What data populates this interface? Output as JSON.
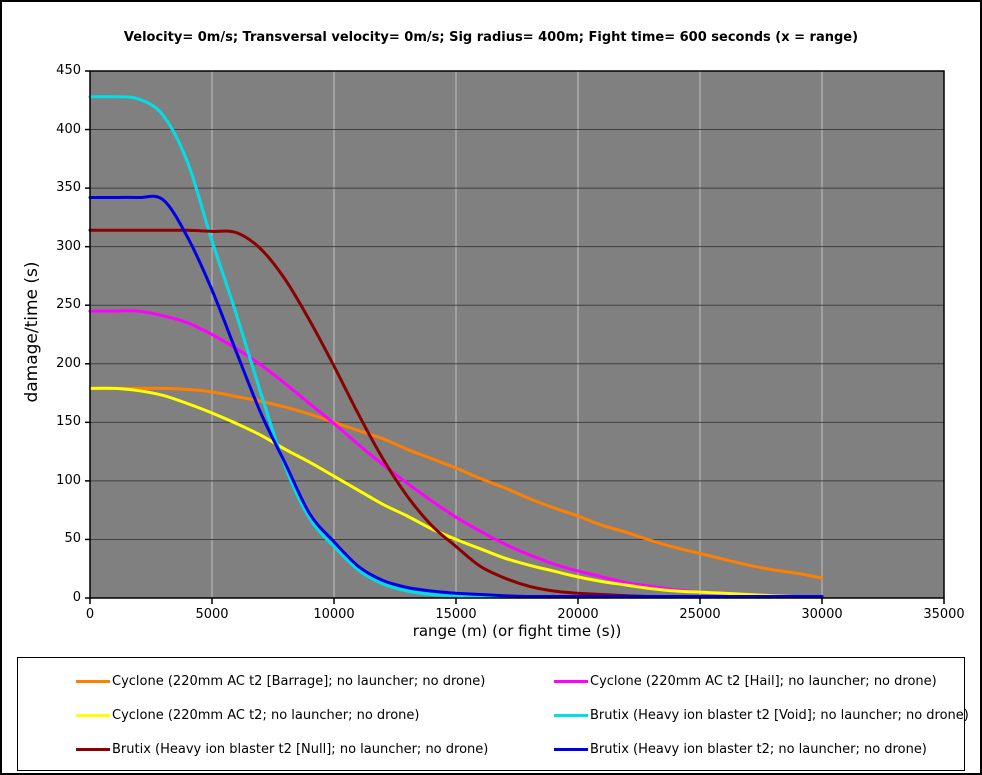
{
  "chart": {
    "title": "Velocity= 0m/s; Transversal velocity= 0m/s; Sig radius= 400m; Fight time= 600 seconds (x = range)",
    "y_axis": {
      "title": "damage/time (s)",
      "min": 0,
      "max": 450,
      "step": 50
    },
    "x_axis": {
      "title": "range (m) (or fight time (s))",
      "min": 0,
      "max": 35000,
      "step": 5000
    },
    "colors": {
      "plot_background": "#808080",
      "horizontal_grid": "#404040",
      "vertical_grid": "#c0c0c0",
      "axis": "#000000",
      "text": "#000000"
    }
  },
  "chart_data": {
    "type": "line",
    "title": "Velocity= 0m/s; Transversal velocity= 0m/s; Sig radius= 400m; Fight time= 600 seconds (x = range)",
    "xlabel": "range (m) (or fight time (s))",
    "ylabel": "damage/time (s)",
    "xlim": [
      0,
      35000
    ],
    "ylim": [
      0,
      450
    ],
    "x_ticks": [
      0,
      5000,
      10000,
      15000,
      20000,
      25000,
      30000,
      35000
    ],
    "y_ticks": [
      0,
      50,
      100,
      150,
      200,
      250,
      300,
      350,
      400,
      450
    ],
    "grid": {
      "horizontal": true,
      "vertical": true
    },
    "legend_position": "bottom",
    "x": [
      0,
      1000,
      2000,
      3000,
      4000,
      5000,
      6000,
      7000,
      8000,
      9000,
      10000,
      11000,
      12000,
      13000,
      14000,
      15000,
      16000,
      17000,
      18000,
      19000,
      20000,
      21000,
      22000,
      23000,
      24000,
      25000,
      26000,
      27000,
      28000,
      29000,
      30000
    ],
    "series": [
      {
        "name": "Cyclone (220mm AC t2 [Barrage]; no launcher; no drone)",
        "color": "#ff7f00",
        "values": [
          179,
          179,
          179,
          179,
          178,
          176,
          172,
          168,
          163,
          157,
          150,
          143,
          136,
          127,
          119,
          111,
          102,
          94,
          85,
          77,
          70,
          62,
          56,
          49,
          43,
          38,
          33,
          28,
          24,
          21,
          17
        ]
      },
      {
        "name": "Cyclone (220mm AC t2 [Hail]; no launcher; no drone)",
        "color": "#ff00ff",
        "values": [
          245,
          245,
          245,
          241,
          235,
          225,
          213,
          199,
          183,
          166,
          149,
          131,
          114,
          98,
          83,
          69,
          57,
          46,
          37,
          29,
          23,
          18,
          13,
          10,
          7,
          5,
          4,
          3,
          2,
          1,
          1
        ]
      },
      {
        "name": "Cyclone (220mm AC t2; no launcher; no drone)",
        "color": "#ffff00",
        "values": [
          179,
          179,
          177,
          173,
          166,
          158,
          149,
          139,
          127,
          116,
          104,
          92,
          80,
          70,
          59,
          50,
          42,
          34,
          28,
          23,
          18,
          14,
          11,
          8,
          6,
          5,
          4,
          3,
          2,
          1,
          1
        ]
      },
      {
        "name": "Brutix (Heavy ion blaster t2 [Void]; no launcher; no drone)",
        "color": "#00dfe8",
        "values": [
          428,
          428,
          426,
          412,
          372,
          305,
          242,
          175,
          112,
          68,
          44,
          24,
          12,
          6,
          3,
          2,
          1,
          1,
          0,
          0,
          0,
          0,
          0,
          0,
          0,
          0,
          0,
          0,
          0,
          0,
          0
        ]
      },
      {
        "name": "Brutix (Heavy ion blaster t2 [Null]; no launcher; no drone)",
        "color": "#8b0000",
        "values": [
          314,
          314,
          314,
          314,
          314,
          313,
          312,
          298,
          272,
          237,
          198,
          157,
          119,
          87,
          62,
          44,
          27,
          17,
          10,
          6,
          4,
          3,
          2,
          1,
          1,
          1,
          1,
          1,
          0,
          0,
          0
        ]
      },
      {
        "name": "Brutix (Heavy ion blaster t2; no launcher; no drone)",
        "color": "#0000e6",
        "values": [
          342,
          342,
          342,
          340,
          308,
          263,
          210,
          158,
          115,
          72,
          48,
          27,
          15,
          9,
          6,
          4,
          3,
          2,
          1,
          1,
          1,
          1,
          1,
          1,
          1,
          1,
          1,
          1,
          1,
          1,
          1
        ]
      }
    ]
  },
  "legend": {
    "columns": 2,
    "rows": 3
  }
}
